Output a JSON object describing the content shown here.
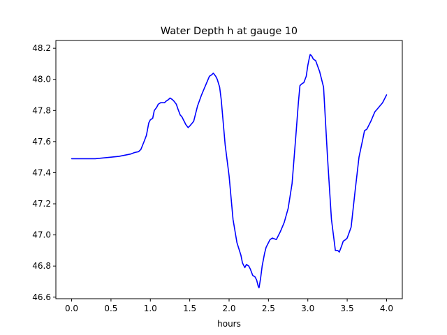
{
  "chart_data": {
    "type": "line",
    "title": "Water Depth h at gauge 10",
    "xlabel": "hours",
    "ylabel": "",
    "xlim": [
      -0.2,
      4.2
    ],
    "ylim": [
      46.59,
      48.25
    ],
    "grid": false,
    "line_color": "#0000ff",
    "x_ticks": [
      0.0,
      0.5,
      1.0,
      1.5,
      2.0,
      2.5,
      3.0,
      3.5,
      4.0
    ],
    "x_tick_labels": [
      "0.0",
      "0.5",
      "1.0",
      "1.5",
      "2.0",
      "2.5",
      "3.0",
      "3.5",
      "4.0"
    ],
    "y_ticks": [
      46.6,
      46.8,
      47.0,
      47.2,
      47.4,
      47.6,
      47.8,
      48.0,
      48.2
    ],
    "y_tick_labels": [
      "46.6",
      "46.8",
      "47.0",
      "47.2",
      "47.4",
      "47.6",
      "47.8",
      "48.0",
      "48.2"
    ],
    "series": [
      {
        "x": [
          0.0,
          0.1,
          0.2,
          0.3,
          0.4,
          0.5,
          0.6,
          0.7,
          0.75,
          0.8,
          0.85,
          0.88,
          0.92,
          0.95,
          0.98,
          1.0,
          1.03,
          1.05,
          1.08,
          1.1,
          1.13,
          1.15,
          1.18,
          1.2,
          1.23,
          1.25,
          1.28,
          1.3,
          1.33,
          1.35,
          1.38,
          1.4,
          1.43,
          1.45,
          1.48,
          1.5,
          1.55,
          1.6,
          1.65,
          1.7,
          1.75,
          1.78,
          1.8,
          1.83,
          1.85,
          1.88,
          1.9,
          1.95,
          2.0,
          2.05,
          2.1,
          2.15,
          2.17,
          2.2,
          2.22,
          2.25,
          2.27,
          2.3,
          2.33,
          2.35,
          2.37,
          2.38,
          2.4,
          2.42,
          2.45,
          2.47,
          2.5,
          2.52,
          2.55,
          2.6,
          2.65,
          2.7,
          2.75,
          2.8,
          2.85,
          2.88,
          2.9,
          2.92,
          2.95,
          2.98,
          3.0,
          3.02,
          3.03,
          3.05,
          3.07,
          3.1,
          3.15,
          3.2,
          3.25,
          3.3,
          3.35,
          3.38,
          3.4,
          3.43,
          3.45,
          3.48,
          3.5,
          3.55,
          3.6,
          3.65,
          3.7,
          3.72,
          3.75,
          3.8,
          3.85,
          3.9,
          3.95,
          4.0
        ],
        "y": [
          47.49,
          47.49,
          47.49,
          47.49,
          47.495,
          47.5,
          47.505,
          47.515,
          47.52,
          47.53,
          47.535,
          47.55,
          47.6,
          47.64,
          47.72,
          47.74,
          47.75,
          47.8,
          47.82,
          47.84,
          47.85,
          47.85,
          47.85,
          47.86,
          47.87,
          47.88,
          47.87,
          47.86,
          47.84,
          47.81,
          47.77,
          47.76,
          47.73,
          47.71,
          47.69,
          47.7,
          47.73,
          47.83,
          47.9,
          47.96,
          48.02,
          48.03,
          48.04,
          48.02,
          48.0,
          47.95,
          47.87,
          47.58,
          47.38,
          47.1,
          46.95,
          46.87,
          46.82,
          46.79,
          46.81,
          46.8,
          46.78,
          46.74,
          46.73,
          46.71,
          46.67,
          46.66,
          46.72,
          46.8,
          46.88,
          46.92,
          46.95,
          46.97,
          46.98,
          46.97,
          47.02,
          47.08,
          47.17,
          47.33,
          47.65,
          47.85,
          47.96,
          47.97,
          47.98,
          48.02,
          48.09,
          48.14,
          48.16,
          48.15,
          48.13,
          48.12,
          48.05,
          47.95,
          47.5,
          47.1,
          46.9,
          46.9,
          46.89,
          46.93,
          46.96,
          46.97,
          46.98,
          47.05,
          47.28,
          47.5,
          47.62,
          47.67,
          47.68,
          47.73,
          47.79,
          47.82,
          47.85,
          47.9
        ]
      }
    ]
  }
}
